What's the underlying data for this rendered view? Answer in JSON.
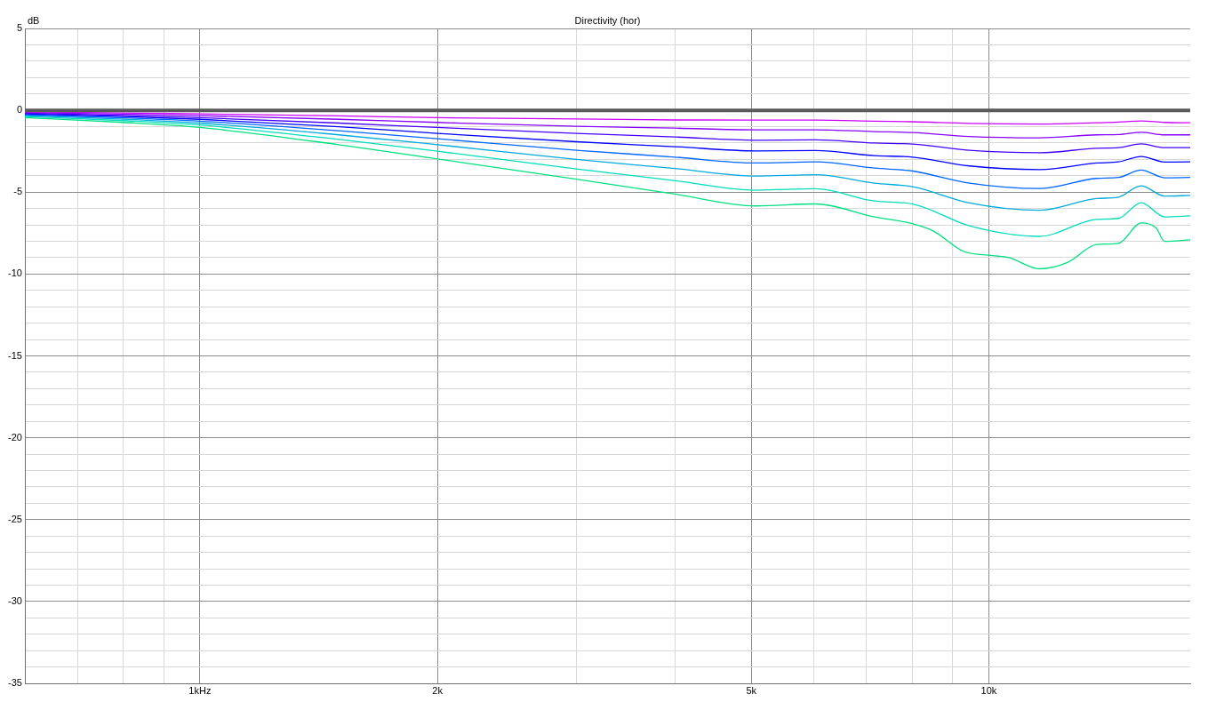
{
  "chart_data": {
    "type": "line",
    "title": "Directivity (hor)",
    "ylabel": "dB",
    "x": [
      0.6,
      0.8,
      1,
      1.5,
      2,
      3,
      4,
      5.07,
      6.03,
      7.16,
      8.01,
      9.45,
      11.6,
      13.7,
      14.6,
      15.6,
      16.7,
      18
    ],
    "xlim": [
      0.6,
      18
    ],
    "xticks": [
      {
        "value": 0.6,
        "label": null
      },
      {
        "value": 0.7,
        "label": null
      },
      {
        "value": 0.8,
        "label": null
      },
      {
        "value": 0.9,
        "label": null
      },
      {
        "value": 1,
        "label": "1kHz"
      },
      {
        "value": 2,
        "label": "2k"
      },
      {
        "value": 3,
        "label": null
      },
      {
        "value": 4,
        "label": null
      },
      {
        "value": 5,
        "label": "5k"
      },
      {
        "value": 6,
        "label": null
      },
      {
        "value": 7,
        "label": null
      },
      {
        "value": 8,
        "label": null
      },
      {
        "value": 9,
        "label": null
      },
      {
        "value": 10,
        "label": "10k"
      }
    ],
    "ylim": [
      -35,
      5
    ],
    "yticks": [
      -35,
      {
        "value": -34,
        "label": null
      },
      {
        "value": -33,
        "label": null
      },
      {
        "value": -32,
        "label": null
      },
      {
        "value": -31,
        "label": null
      },
      -30,
      {
        "value": -29,
        "label": null
      },
      {
        "value": -28,
        "label": null
      },
      {
        "value": -27,
        "label": null
      },
      {
        "value": -26,
        "label": null
      },
      -25,
      {
        "value": -24,
        "label": null
      },
      {
        "value": -23,
        "label": null
      },
      {
        "value": -22,
        "label": null
      },
      {
        "value": -21,
        "label": null
      },
      -20,
      {
        "value": -19,
        "label": null
      },
      {
        "value": -18,
        "label": null
      },
      {
        "value": -17,
        "label": null
      },
      {
        "value": -16,
        "label": null
      },
      -15,
      {
        "value": -14,
        "label": null
      },
      {
        "value": -13,
        "label": null
      },
      {
        "value": -12,
        "label": null
      },
      {
        "value": -11,
        "label": null
      },
      -10,
      {
        "value": -9,
        "label": null
      },
      {
        "value": -8,
        "label": null
      },
      {
        "value": -7,
        "label": null
      },
      {
        "value": -6,
        "label": null
      },
      -5,
      {
        "value": -4,
        "label": null
      },
      {
        "value": -3,
        "label": null
      },
      {
        "value": -2,
        "label": null
      },
      {
        "value": -1,
        "label": null
      },
      0,
      {
        "value": 1,
        "label": null
      },
      {
        "value": 2,
        "label": null
      },
      {
        "value": 3,
        "label": null
      },
      {
        "value": 4,
        "label": null
      },
      5
    ],
    "log": "x",
    "grid": true,
    "legend": false,
    "marker": "none",
    "line_style": "solid",
    "series": [
      {
        "color": "#5a5a5a",
        "x": [
          0.6,
          18
        ],
        "values": [
          0,
          0
        ]
      },
      {
        "color": "#cc00ff",
        "values": [
          -0.1,
          -0.16,
          -0.22,
          -0.34,
          -0.45,
          -0.53,
          -0.59,
          -0.6,
          -0.6,
          -0.66,
          -0.7,
          -0.8,
          -0.84,
          -0.76,
          -0.72,
          -0.65,
          -0.74,
          -0.76
        ]
      },
      {
        "color": "#8800ff",
        "values": [
          -0.14,
          -0.23,
          -0.33,
          -0.55,
          -0.74,
          -0.98,
          -1.09,
          -1.19,
          -1.19,
          -1.3,
          -1.36,
          -1.6,
          -1.68,
          -1.5,
          -1.48,
          -1.34,
          -1.5,
          -1.5
        ]
      },
      {
        "color": "#4400ff",
        "values": [
          -0.18,
          -0.31,
          -0.45,
          -0.78,
          -1.05,
          -1.41,
          -1.63,
          -1.83,
          -1.81,
          -2.0,
          -2.06,
          -2.44,
          -2.59,
          -2.32,
          -2.28,
          -2.05,
          -2.28,
          -2.28
        ]
      },
      {
        "color": "#0000ff",
        "values": [
          -0.22,
          -0.38,
          -0.55,
          -1.0,
          -1.41,
          -1.92,
          -2.22,
          -2.48,
          -2.46,
          -2.77,
          -2.86,
          -3.4,
          -3.62,
          -3.22,
          -3.15,
          -2.82,
          -3.16,
          -3.15
        ]
      },
      {
        "color": "#0066ff",
        "values": [
          -0.27,
          -0.46,
          -0.66,
          -1.25,
          -1.74,
          -2.44,
          -2.86,
          -3.22,
          -3.15,
          -3.53,
          -3.71,
          -4.45,
          -4.78,
          -4.16,
          -4.1,
          -3.65,
          -4.12,
          -4.1
        ]
      },
      {
        "color": "#00aadd",
        "values": [
          -0.32,
          -0.54,
          -0.78,
          -1.5,
          -2.1,
          -3.0,
          -3.55,
          -4.02,
          -3.94,
          -4.45,
          -4.67,
          -5.66,
          -6.11,
          -5.39,
          -5.3,
          -4.61,
          -5.24,
          -5.2
        ]
      },
      {
        "color": "#00ddbb",
        "values": [
          -0.38,
          -0.63,
          -0.9,
          -1.78,
          -2.5,
          -3.58,
          -4.3,
          -4.88,
          -4.79,
          -5.54,
          -5.72,
          -7.06,
          -7.7,
          -6.66,
          -6.6,
          -5.64,
          -6.51,
          -6.44
        ]
      },
      {
        "color": "#00e080",
        "x": [
          0.6,
          0.8,
          1,
          1.5,
          2,
          3,
          4,
          5.07,
          6.03,
          7.16,
          8.01,
          8.51,
          9.28,
          10.1,
          10.6,
          11.6,
          12.6,
          13.7,
          14.6,
          15.6,
          16.3,
          16.7,
          18
        ],
        "values": [
          -0.45,
          -0.74,
          -1.05,
          -2.1,
          -2.97,
          -4.21,
          -5.12,
          -5.84,
          -5.72,
          -6.51,
          -6.93,
          -7.38,
          -8.61,
          -8.87,
          -9.0,
          -9.68,
          -9.28,
          -8.2,
          -8.13,
          -6.88,
          -7.2,
          -8.0,
          -7.91
        ]
      }
    ]
  }
}
